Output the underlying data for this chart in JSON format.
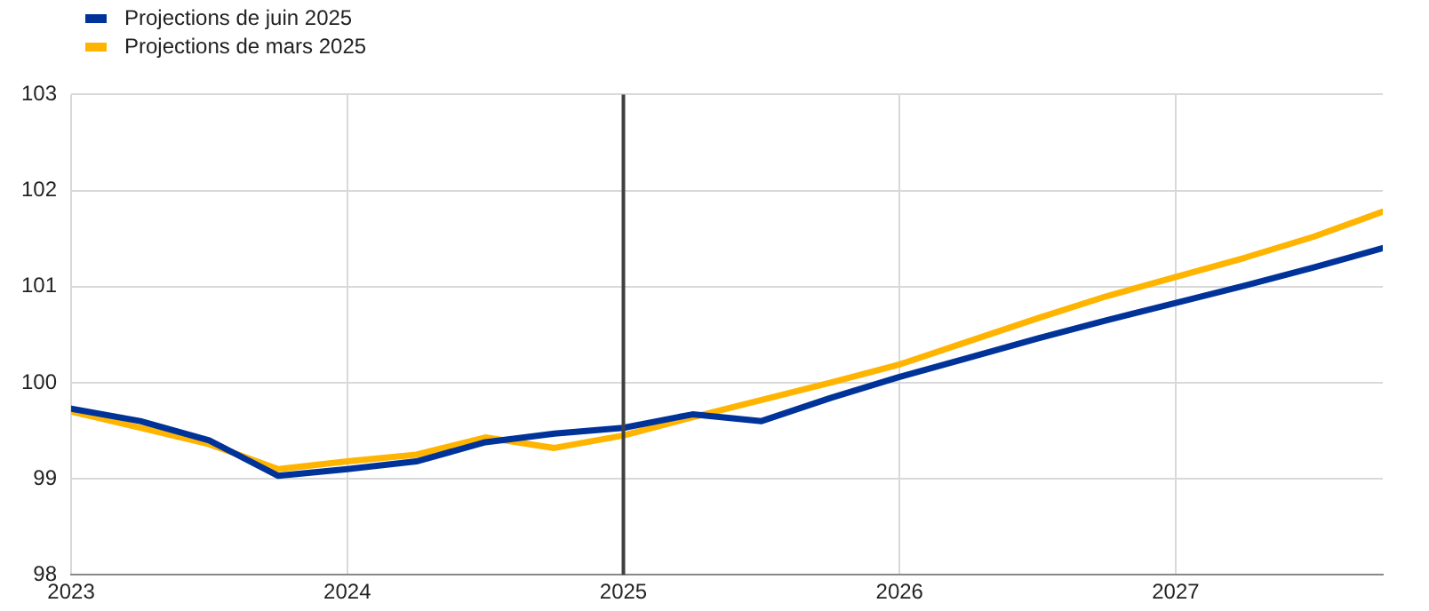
{
  "chart_data": {
    "type": "line",
    "x": [
      2023,
      2023.25,
      2023.5,
      2023.75,
      2024,
      2024.25,
      2024.5,
      2024.75,
      2025,
      2025.25,
      2025.5,
      2025.75,
      2026,
      2026.25,
      2026.5,
      2026.75,
      2027,
      2027.25,
      2027.5,
      2027.75
    ],
    "series": [
      {
        "name": "Projections de juin 2025",
        "color": "#003399",
        "values": [
          99.73,
          99.6,
          99.4,
          99.03,
          99.1,
          99.18,
          99.38,
          99.47,
          99.53,
          99.67,
          99.6,
          99.84,
          100.06,
          100.26,
          100.46,
          100.65,
          100.83,
          101.01,
          101.2,
          101.4
        ]
      },
      {
        "name": "Projections de mars 2025",
        "color": "#ffb400",
        "values": [
          99.7,
          99.53,
          99.36,
          99.1,
          99.18,
          99.25,
          99.43,
          99.32,
          99.45,
          99.64,
          99.82,
          100.0,
          100.19,
          100.43,
          100.67,
          100.9,
          101.1,
          101.3,
          101.52,
          101.78
        ]
      }
    ],
    "xlim": [
      2023,
      2027.75
    ],
    "xticks": [
      2023,
      2024,
      2025,
      2026,
      2027
    ],
    "ylim": [
      98,
      103
    ],
    "yticks": [
      98,
      99,
      100,
      101,
      102,
      103
    ],
    "ref_lines": [
      {
        "axis": "x",
        "value": 2025,
        "color": "#404040"
      }
    ],
    "grid": true,
    "legend": "top left",
    "marker": "none",
    "line_style": "solid"
  }
}
